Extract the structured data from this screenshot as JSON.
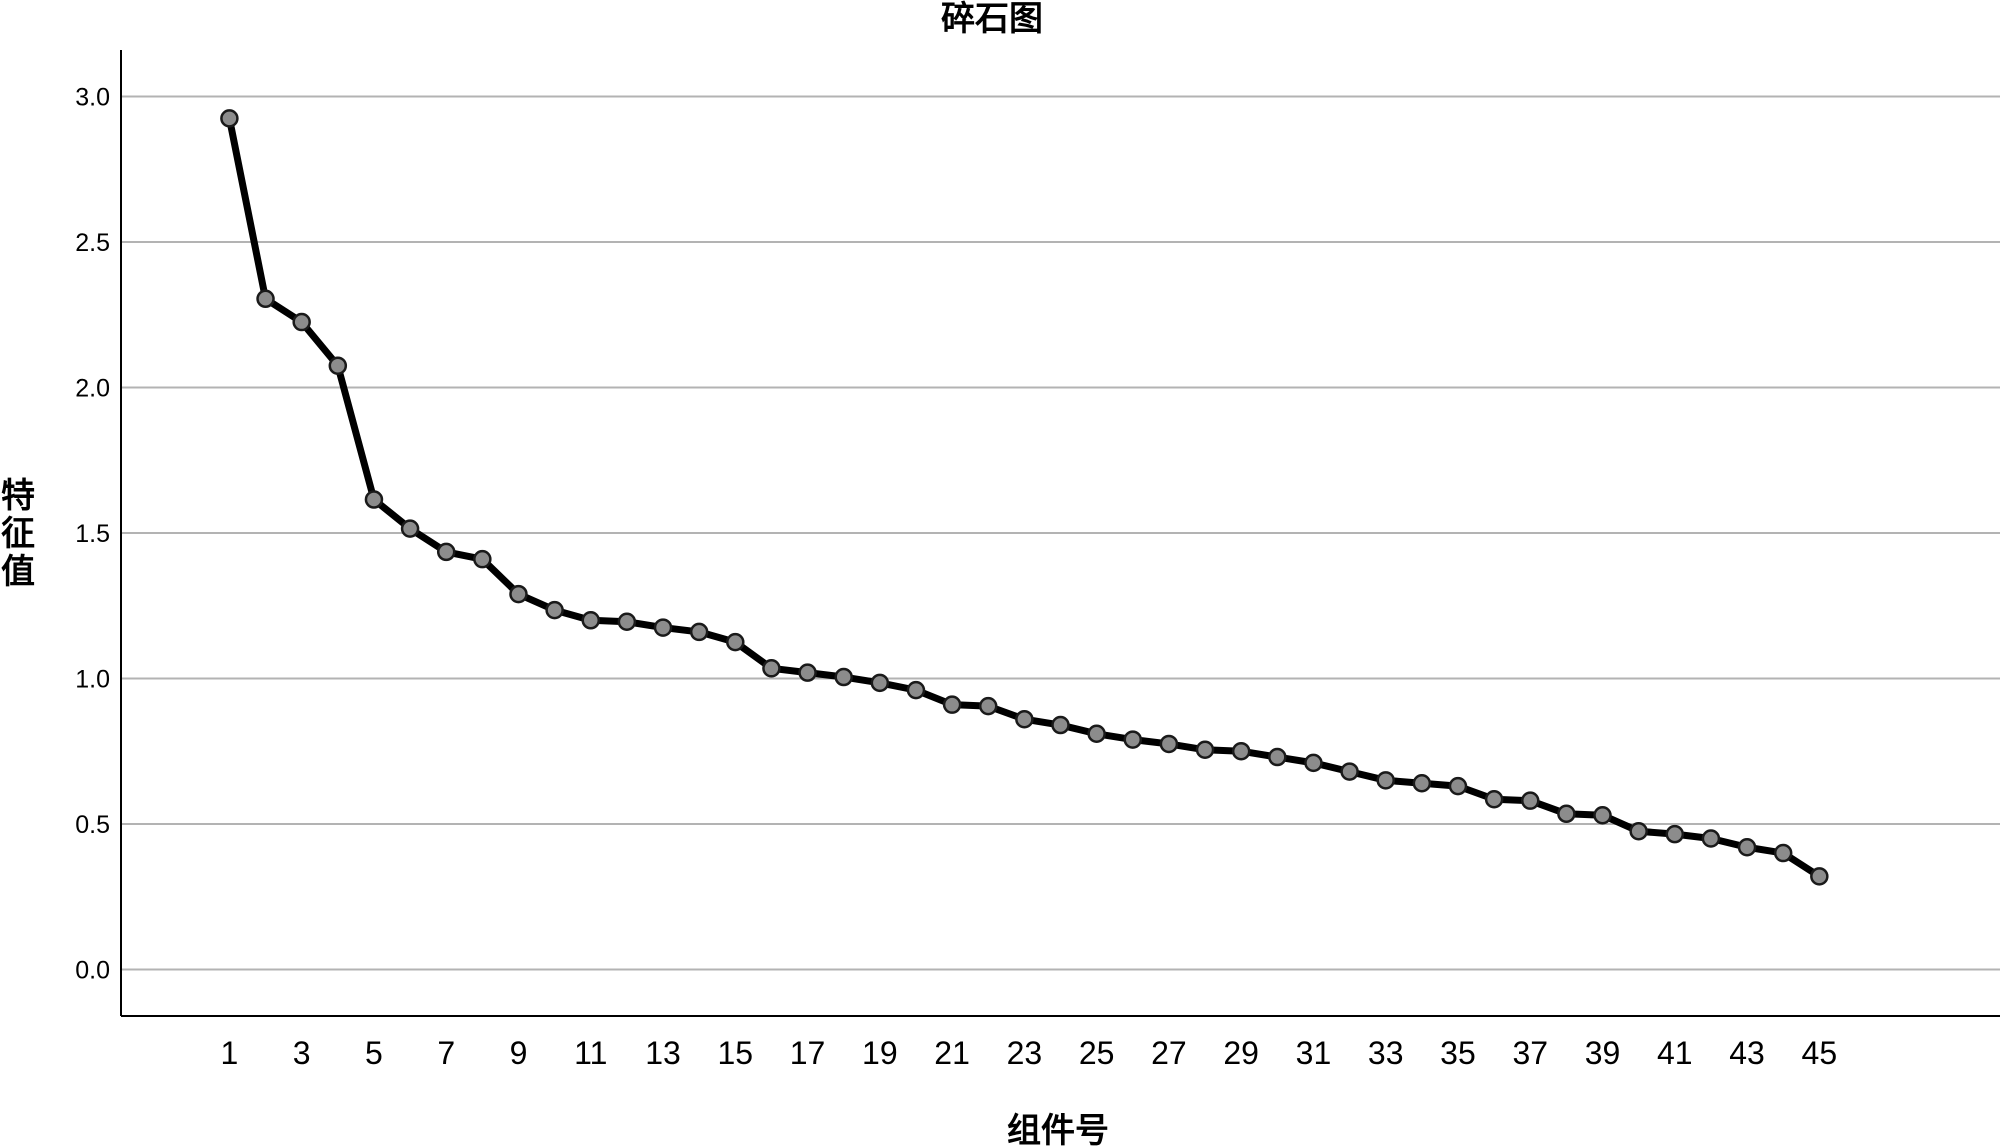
{
  "chart_data": {
    "type": "line",
    "title": "碎石图",
    "xlabel": "组件号",
    "ylabel": "特征值",
    "x_tick_labels": [
      "1",
      "3",
      "5",
      "7",
      "9",
      "11",
      "13",
      "15",
      "17",
      "19",
      "21",
      "23",
      "25",
      "27",
      "29",
      "31",
      "33",
      "35",
      "37",
      "39",
      "41",
      "43",
      "45"
    ],
    "y_tick_labels": [
      "0.0",
      "0.5",
      "1.0",
      "1.5",
      "2.0",
      "2.5",
      "3.0"
    ],
    "ylim": [
      -0.16,
      3.16
    ],
    "xlim": [
      -2,
      50
    ],
    "grid": "horizontal",
    "legend": "none",
    "colors": {
      "line": "#000000",
      "marker_fill": "#8c8c8c",
      "marker_edge": "#1a1a1a",
      "grid": "#b3b3b3"
    },
    "x": [
      1,
      2,
      3,
      4,
      5,
      6,
      7,
      8,
      9,
      10,
      11,
      12,
      13,
      14,
      15,
      16,
      17,
      18,
      19,
      20,
      21,
      22,
      23,
      24,
      25,
      26,
      27,
      28,
      29,
      30,
      31,
      32,
      33,
      34,
      35,
      36,
      37,
      38,
      39,
      40,
      41,
      42,
      43,
      44,
      45
    ],
    "values": [
      2.925,
      2.305,
      2.225,
      2.075,
      1.615,
      1.515,
      1.435,
      1.41,
      1.29,
      1.235,
      1.2,
      1.195,
      1.175,
      1.16,
      1.125,
      1.035,
      1.02,
      1.005,
      0.985,
      0.96,
      0.91,
      0.905,
      0.86,
      0.84,
      0.81,
      0.79,
      0.775,
      0.755,
      0.75,
      0.73,
      0.71,
      0.68,
      0.65,
      0.64,
      0.63,
      0.585,
      0.58,
      0.535,
      0.53,
      0.475,
      0.465,
      0.45,
      0.42,
      0.4,
      0.32
    ]
  }
}
